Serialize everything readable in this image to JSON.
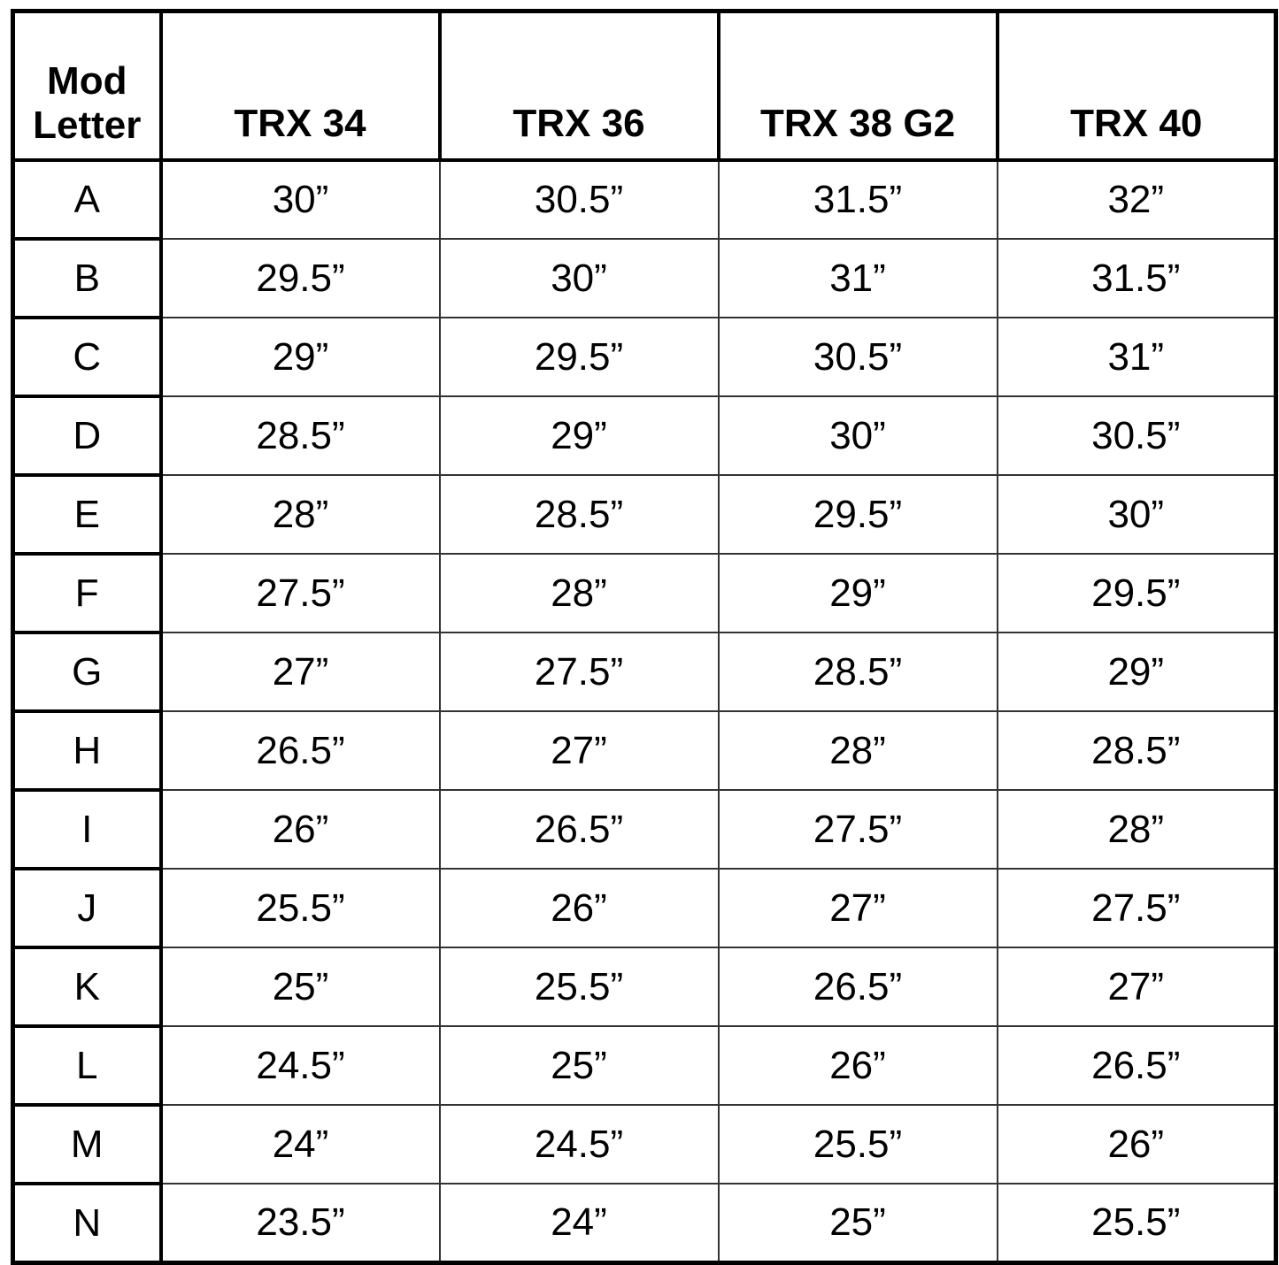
{
  "table": {
    "headers": [
      "Mod Letter",
      "TRX 34",
      "TRX 36",
      "TRX 38 G2",
      "TRX 40"
    ],
    "header_mod_line1": "Mod",
    "header_mod_line2": "Letter",
    "rows": [
      [
        "A",
        "30”",
        "30.5”",
        "31.5”",
        "32”"
      ],
      [
        "B",
        "29.5”",
        "30”",
        "31”",
        "31.5”"
      ],
      [
        "C",
        "29”",
        "29.5”",
        "30.5”",
        "31”"
      ],
      [
        "D",
        "28.5”",
        "29”",
        "30”",
        "30.5”"
      ],
      [
        "E",
        "28”",
        "28.5”",
        "29.5”",
        "30”"
      ],
      [
        "F",
        "27.5”",
        "28”",
        "29”",
        "29.5”"
      ],
      [
        "G",
        "27”",
        "27.5”",
        "28.5”",
        "29”"
      ],
      [
        "H",
        "26.5”",
        "27”",
        "28”",
        "28.5”"
      ],
      [
        "I",
        "26”",
        "26.5”",
        "27.5”",
        "28”"
      ],
      [
        "J",
        "25.5”",
        "26”",
        "27”",
        "27.5”"
      ],
      [
        "K",
        "25”",
        "25.5”",
        "26.5”",
        "27”"
      ],
      [
        "L",
        "24.5”",
        "25”",
        "26”",
        "26.5”"
      ],
      [
        "M",
        "24”",
        "24.5”",
        "25.5”",
        "26”"
      ],
      [
        "N",
        "23.5”",
        "24”",
        "25”",
        "25.5”"
      ]
    ]
  }
}
